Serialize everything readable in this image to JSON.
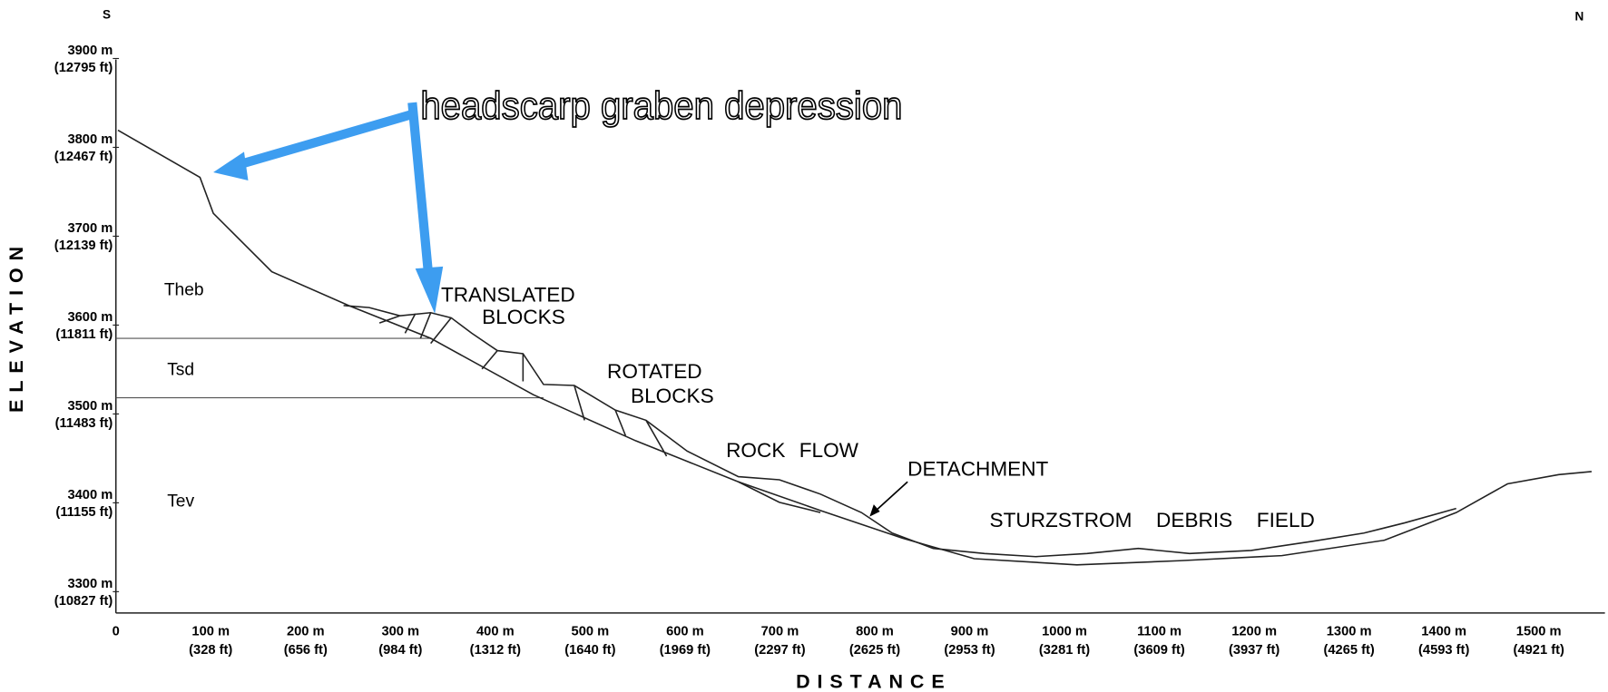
{
  "header": {
    "left": "S",
    "right": "N"
  },
  "axes": {
    "y": {
      "title": "ELEVATION",
      "ticks": [
        {
          "m": "3900 m",
          "ft": "(12795 ft)"
        },
        {
          "m": "3800 m",
          "ft": "(12467 ft)"
        },
        {
          "m": "3700 m",
          "ft": "(12139 ft)"
        },
        {
          "m": "3600 m",
          "ft": "(11811 ft)"
        },
        {
          "m": "3500 m",
          "ft": "(11483 ft)"
        },
        {
          "m": "3400 m",
          "ft": "(11155 ft)"
        },
        {
          "m": "3300 m",
          "ft": "(10827 ft)"
        }
      ]
    },
    "x": {
      "title": "DISTANCE",
      "ticks": [
        {
          "m": "0"
        },
        {
          "m": "100 m",
          "ft": "(328 ft)"
        },
        {
          "m": "200 m",
          "ft": "(656 ft)"
        },
        {
          "m": "300 m",
          "ft": "(984 ft)"
        },
        {
          "m": "400 m",
          "ft": "(1312 ft)"
        },
        {
          "m": "500 m",
          "ft": "(1640 ft)"
        },
        {
          "m": "600 m",
          "ft": "(1969 ft)"
        },
        {
          "m": "700 m",
          "ft": "(2297 ft)"
        },
        {
          "m": "800 m",
          "ft": "(2625 ft)"
        },
        {
          "m": "900 m",
          "ft": "(2953 ft)"
        },
        {
          "m": "1000 m",
          "ft": "(3281 ft)"
        },
        {
          "m": "1100 m",
          "ft": "(3609 ft)"
        },
        {
          "m": "1200 m",
          "ft": "(3937 ft)"
        },
        {
          "m": "1300 m",
          "ft": "(4265 ft)"
        },
        {
          "m": "1400 m",
          "ft": "(4593 ft)"
        },
        {
          "m": "1500 m",
          "ft": "(4921 ft)"
        }
      ]
    }
  },
  "units": [
    "Theb",
    "Tsd",
    "Tev"
  ],
  "callout": "headscarp graben depression",
  "annotations": [
    {
      "lines": [
        "TRANSLATED",
        "BLOCKS"
      ]
    },
    {
      "lines": [
        "ROTATED",
        "BLOCKS"
      ]
    },
    {
      "lines": [
        "ROCK FLOW"
      ]
    },
    {
      "lines": [
        "DETACHMENT"
      ]
    },
    {
      "lines": [
        "STURZSTROM DEBRIS FIELD"
      ]
    }
  ]
}
